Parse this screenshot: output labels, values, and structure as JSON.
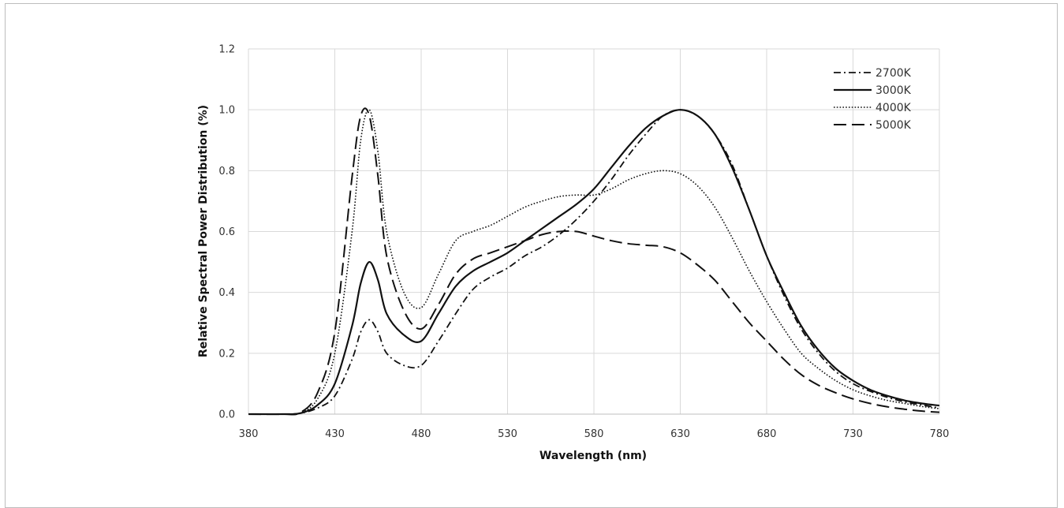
{
  "chart_data": {
    "type": "line",
    "title": "",
    "xlabel": "Wavelength (nm)",
    "ylabel": "Relative Spectral Power Distribution (%)",
    "xlim": [
      380,
      780
    ],
    "ylim": [
      0,
      1.2
    ],
    "xticks": [
      380,
      430,
      480,
      530,
      580,
      630,
      680,
      730,
      780
    ],
    "yticks": [
      "0.0",
      "0.2",
      "0.4",
      "0.6",
      "0.8",
      "1.0",
      "1.2"
    ],
    "grid": true,
    "legend_position": "top-right",
    "series": [
      {
        "name": "2700K",
        "dash": "dashdot",
        "x": [
          380,
          400,
          410,
          420,
          430,
          440,
          445,
          450,
          455,
          460,
          470,
          480,
          490,
          500,
          510,
          520,
          530,
          540,
          550,
          560,
          570,
          580,
          590,
          600,
          610,
          620,
          630,
          640,
          650,
          660,
          670,
          680,
          690,
          700,
          710,
          720,
          730,
          740,
          750,
          760,
          770,
          780
        ],
        "values": [
          0,
          0,
          0.003,
          0.02,
          0.06,
          0.18,
          0.27,
          0.31,
          0.27,
          0.2,
          0.16,
          0.16,
          0.24,
          0.33,
          0.41,
          0.45,
          0.48,
          0.52,
          0.55,
          0.59,
          0.64,
          0.7,
          0.77,
          0.85,
          0.92,
          0.98,
          1.0,
          0.98,
          0.92,
          0.82,
          0.67,
          0.52,
          0.39,
          0.28,
          0.2,
          0.14,
          0.1,
          0.075,
          0.055,
          0.04,
          0.03,
          0.02
        ]
      },
      {
        "name": "3000K",
        "dash": "solid",
        "x": [
          380,
          400,
          410,
          420,
          430,
          440,
          445,
          450,
          455,
          460,
          470,
          480,
          490,
          500,
          510,
          520,
          530,
          540,
          550,
          560,
          570,
          580,
          590,
          600,
          610,
          620,
          630,
          640,
          650,
          660,
          670,
          680,
          690,
          700,
          710,
          720,
          730,
          740,
          750,
          760,
          770,
          780
        ],
        "values": [
          0,
          0,
          0.003,
          0.03,
          0.1,
          0.29,
          0.43,
          0.5,
          0.44,
          0.33,
          0.26,
          0.24,
          0.33,
          0.42,
          0.47,
          0.5,
          0.53,
          0.57,
          0.61,
          0.65,
          0.69,
          0.74,
          0.81,
          0.88,
          0.94,
          0.98,
          1.0,
          0.98,
          0.92,
          0.81,
          0.67,
          0.52,
          0.4,
          0.29,
          0.21,
          0.15,
          0.11,
          0.08,
          0.06,
          0.045,
          0.035,
          0.028
        ]
      },
      {
        "name": "4000K",
        "dash": "dotted",
        "x": [
          380,
          400,
          410,
          420,
          430,
          440,
          445,
          450,
          455,
          460,
          470,
          480,
          490,
          500,
          510,
          520,
          530,
          540,
          550,
          560,
          570,
          580,
          590,
          600,
          610,
          620,
          630,
          640,
          650,
          660,
          670,
          680,
          690,
          700,
          710,
          720,
          730,
          740,
          750,
          760,
          770,
          780
        ],
        "values": [
          0,
          0,
          0.004,
          0.05,
          0.2,
          0.6,
          0.9,
          1.0,
          0.86,
          0.6,
          0.4,
          0.35,
          0.46,
          0.57,
          0.6,
          0.62,
          0.65,
          0.68,
          0.7,
          0.715,
          0.72,
          0.72,
          0.74,
          0.77,
          0.79,
          0.8,
          0.79,
          0.75,
          0.68,
          0.58,
          0.47,
          0.37,
          0.28,
          0.2,
          0.15,
          0.11,
          0.08,
          0.06,
          0.045,
          0.035,
          0.025,
          0.018
        ]
      },
      {
        "name": "5000K",
        "dash": "longdash",
        "x": [
          380,
          400,
          410,
          420,
          430,
          440,
          445,
          450,
          455,
          460,
          470,
          480,
          490,
          500,
          510,
          520,
          530,
          540,
          550,
          560,
          570,
          580,
          590,
          600,
          610,
          620,
          630,
          640,
          650,
          660,
          670,
          680,
          690,
          700,
          710,
          720,
          730,
          740,
          750,
          760,
          770,
          780
        ],
        "values": [
          0,
          0,
          0.005,
          0.07,
          0.27,
          0.78,
          0.98,
          0.98,
          0.78,
          0.52,
          0.34,
          0.28,
          0.36,
          0.46,
          0.51,
          0.53,
          0.55,
          0.57,
          0.59,
          0.6,
          0.6,
          0.585,
          0.57,
          0.56,
          0.555,
          0.55,
          0.53,
          0.49,
          0.44,
          0.37,
          0.3,
          0.24,
          0.18,
          0.13,
          0.095,
          0.07,
          0.05,
          0.035,
          0.024,
          0.016,
          0.01,
          0.006
        ]
      }
    ]
  }
}
